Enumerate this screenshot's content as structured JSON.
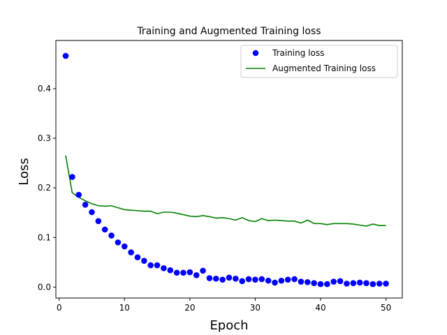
{
  "chart_data": {
    "type": "scatter+line",
    "title": "Training and Augmented Training loss",
    "xlabel": "Epoch",
    "ylabel": "Loss",
    "xlim": [
      -0.5,
      52.5
    ],
    "ylim": [
      -0.022,
      0.497
    ],
    "xticks": [
      0,
      10,
      20,
      30,
      40,
      50
    ],
    "yticks": [
      0.0,
      0.1,
      0.2,
      0.3,
      0.4
    ],
    "ytick_labels": [
      "0.0",
      "0.1",
      "0.2",
      "0.3",
      "0.4"
    ],
    "legend_position": "top-right",
    "grid": false,
    "series": [
      {
        "name": "Training loss",
        "kind": "scatter",
        "color": "#0000ff",
        "x": [
          1,
          2,
          3,
          4,
          5,
          6,
          7,
          8,
          9,
          10,
          11,
          12,
          13,
          14,
          15,
          16,
          17,
          18,
          19,
          20,
          21,
          22,
          23,
          24,
          25,
          26,
          27,
          28,
          29,
          30,
          31,
          32,
          33,
          34,
          35,
          36,
          37,
          38,
          39,
          40,
          41,
          42,
          43,
          44,
          45,
          46,
          47,
          48,
          49,
          50
        ],
        "y": [
          0.466,
          0.222,
          0.186,
          0.166,
          0.151,
          0.133,
          0.116,
          0.104,
          0.09,
          0.082,
          0.07,
          0.06,
          0.053,
          0.044,
          0.044,
          0.038,
          0.034,
          0.029,
          0.029,
          0.03,
          0.024,
          0.033,
          0.018,
          0.017,
          0.015,
          0.019,
          0.017,
          0.012,
          0.016,
          0.015,
          0.016,
          0.013,
          0.009,
          0.013,
          0.015,
          0.016,
          0.011,
          0.01,
          0.008,
          0.006,
          0.006,
          0.011,
          0.012,
          0.007,
          0.008,
          0.009,
          0.008,
          0.006,
          0.007,
          0.007
        ]
      },
      {
        "name": "Augmented Training loss",
        "kind": "line",
        "color": "#008000",
        "x": [
          1,
          2,
          3,
          4,
          5,
          6,
          7,
          8,
          9,
          10,
          11,
          12,
          13,
          14,
          15,
          16,
          17,
          18,
          19,
          20,
          21,
          22,
          23,
          24,
          25,
          26,
          27,
          28,
          29,
          30,
          31,
          32,
          33,
          34,
          35,
          36,
          37,
          38,
          39,
          40,
          41,
          42,
          43,
          44,
          45,
          46,
          47,
          48,
          49,
          50
        ],
        "y": [
          0.265,
          0.19,
          0.181,
          0.174,
          0.168,
          0.164,
          0.163,
          0.164,
          0.16,
          0.156,
          0.155,
          0.154,
          0.153,
          0.153,
          0.148,
          0.151,
          0.151,
          0.149,
          0.146,
          0.143,
          0.142,
          0.144,
          0.142,
          0.139,
          0.14,
          0.138,
          0.135,
          0.14,
          0.134,
          0.132,
          0.138,
          0.134,
          0.135,
          0.134,
          0.133,
          0.133,
          0.129,
          0.135,
          0.128,
          0.128,
          0.126,
          0.128,
          0.128,
          0.128,
          0.127,
          0.125,
          0.123,
          0.127,
          0.124,
          0.124
        ]
      }
    ]
  }
}
